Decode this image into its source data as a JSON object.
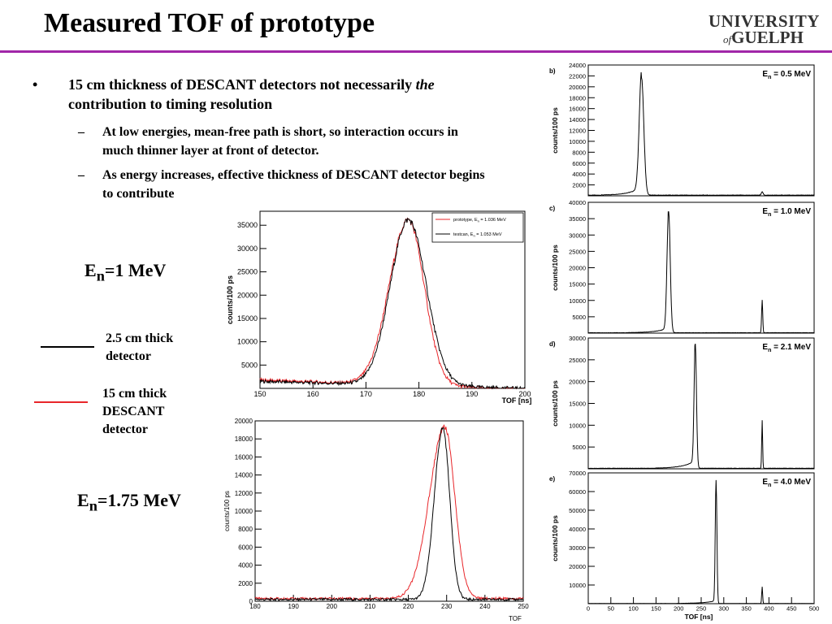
{
  "slide": {
    "title": "Measured TOF of prototype",
    "logo_line1": "UNIVERSITY",
    "logo_of": "of",
    "logo_line2": "GUELPH",
    "bullet_symbol": "•",
    "dash_symbol": "–",
    "bullet1_pre": "15 cm thickness of DESCANT detectors not necessarily ",
    "bullet1_em": "the",
    "bullet1_post": " contribution to timing resolution",
    "sub1": "At low energies, mean-free path is short, so interaction occurs in much thinner layer at front of detector.",
    "sub2": "As energy increases, effective thickness of DESCANT detector begins to contribute",
    "en1_label": "E",
    "en1_sub": "n",
    "en1_value": "=1 MeV",
    "en2_label": "E",
    "en2_sub": "n",
    "en2_value": "=1.75 MeV",
    "legend_black": "2.5 cm thick detector",
    "legend_red": "15 cm thick DESCANT detector",
    "colors": {
      "rule": "#a126a8",
      "red": "#e8262a",
      "black": "#000000"
    }
  },
  "chart_data": [
    {
      "type": "line",
      "id": "compare-1mev",
      "xlabel": "TOF [ns]",
      "ylabel": "counts/100 ps",
      "xlim": [
        150,
        200
      ],
      "ylim": [
        0,
        38000
      ],
      "xticks": [
        150,
        160,
        170,
        180,
        190,
        200
      ],
      "yticks": [
        5000,
        10000,
        15000,
        20000,
        25000,
        30000,
        35000
      ],
      "legend_position": "top-right",
      "series": [
        {
          "name": "prototype, E_n = 1.036 MeV",
          "name_main": "prototype, E",
          "name_sub": "n",
          "name_tail": " = 1.036 MeV",
          "color": "#e8262a",
          "peak": 178,
          "amp": 35500,
          "sigma_left": 3.6,
          "sigma_right": 3.0,
          "baseline": 1800,
          "baseline_slope": -40
        },
        {
          "name": "testcan, E_n = 1.053 MeV",
          "name_main": "testcan, E",
          "name_sub": "n",
          "name_tail": " = 1.053 MeV",
          "color": "#000000",
          "peak": 178,
          "amp": 35500,
          "sigma_left": 3.4,
          "sigma_right": 3.4,
          "baseline": 1500,
          "baseline_slope": -30
        }
      ]
    },
    {
      "type": "line",
      "id": "compare-175mev",
      "xlabel": "TOF",
      "ylabel": "counts/100 ps",
      "xlim": [
        180,
        250
      ],
      "ylim": [
        0,
        20000
      ],
      "xticks": [
        180,
        190,
        200,
        210,
        220,
        230,
        240,
        250
      ],
      "yticks": [
        0,
        2000,
        4000,
        6000,
        8000,
        10000,
        12000,
        14000,
        16000,
        18000,
        20000
      ],
      "series": [
        {
          "name": "15 cm DESCANT",
          "color": "#e8262a",
          "peak": 229.5,
          "amp": 19000,
          "sigma_left": 4.0,
          "sigma_right": 2.6,
          "baseline": 300,
          "baseline_slope": 0
        },
        {
          "name": "2.5 cm",
          "color": "#000000",
          "peak": 229,
          "amp": 19000,
          "sigma_left": 2.2,
          "sigma_right": 1.8,
          "baseline": 200,
          "baseline_slope": 0
        }
      ]
    },
    {
      "type": "line",
      "id": "panel-b",
      "panel_label": "b)",
      "energy_main": "E",
      "energy_sub": "n",
      "energy_tail": " = 0.5 MeV",
      "ylabel": "counts/100 ps",
      "xlim": [
        0,
        500
      ],
      "ylim": [
        0,
        24000
      ],
      "yticks": [
        2000,
        4000,
        6000,
        8000,
        10000,
        12000,
        14000,
        16000,
        18000,
        20000,
        22000,
        24000
      ],
      "peaks": [
        {
          "x": 118,
          "amp": 21500,
          "sigma": 5,
          "tail": 1500
        },
        {
          "x": 385,
          "amp": 600,
          "sigma": 2,
          "tail": 0
        }
      ]
    },
    {
      "type": "line",
      "id": "panel-c",
      "panel_label": "c)",
      "energy_main": "E",
      "energy_sub": "n",
      "energy_tail": " = 1.0 MeV",
      "ylabel": "counts/100 ps",
      "xlim": [
        0,
        500
      ],
      "ylim": [
        0,
        40000
      ],
      "yticks": [
        5000,
        10000,
        15000,
        20000,
        25000,
        30000,
        35000,
        40000
      ],
      "peaks": [
        {
          "x": 178,
          "amp": 37000,
          "sigma": 3.5,
          "tail": 1500
        },
        {
          "x": 385,
          "amp": 10000,
          "sigma": 1.2,
          "tail": 0
        }
      ]
    },
    {
      "type": "line",
      "id": "panel-d",
      "panel_label": "d)",
      "energy_main": "E",
      "energy_sub": "n",
      "energy_tail": " = 2.1 MeV",
      "ylabel": "counts/100 ps",
      "xlim": [
        0,
        500
      ],
      "ylim": [
        0,
        30000
      ],
      "yticks": [
        5000,
        10000,
        15000,
        20000,
        25000,
        30000
      ],
      "peaks": [
        {
          "x": 237,
          "amp": 28500,
          "sigma": 2.6,
          "tail": 1800
        },
        {
          "x": 385,
          "amp": 11000,
          "sigma": 1.0,
          "tail": 0
        }
      ]
    },
    {
      "type": "line",
      "id": "panel-e",
      "panel_label": "e)",
      "energy_main": "E",
      "energy_sub": "n",
      "energy_tail": " = 4.0 MeV",
      "ylabel": "counts/100 ps",
      "xlabel": "TOF [ns]",
      "xlim": [
        0,
        500
      ],
      "ylim": [
        0,
        70000
      ],
      "xticks": [
        0,
        50,
        100,
        150,
        200,
        250,
        300,
        350,
        400,
        450,
        500
      ],
      "yticks": [
        10000,
        20000,
        30000,
        40000,
        50000,
        60000,
        70000
      ],
      "peaks": [
        {
          "x": 283,
          "amp": 66000,
          "sigma": 1.8,
          "tail": 1500
        },
        {
          "x": 385,
          "amp": 9000,
          "sigma": 1.0,
          "tail": 0
        }
      ]
    }
  ]
}
